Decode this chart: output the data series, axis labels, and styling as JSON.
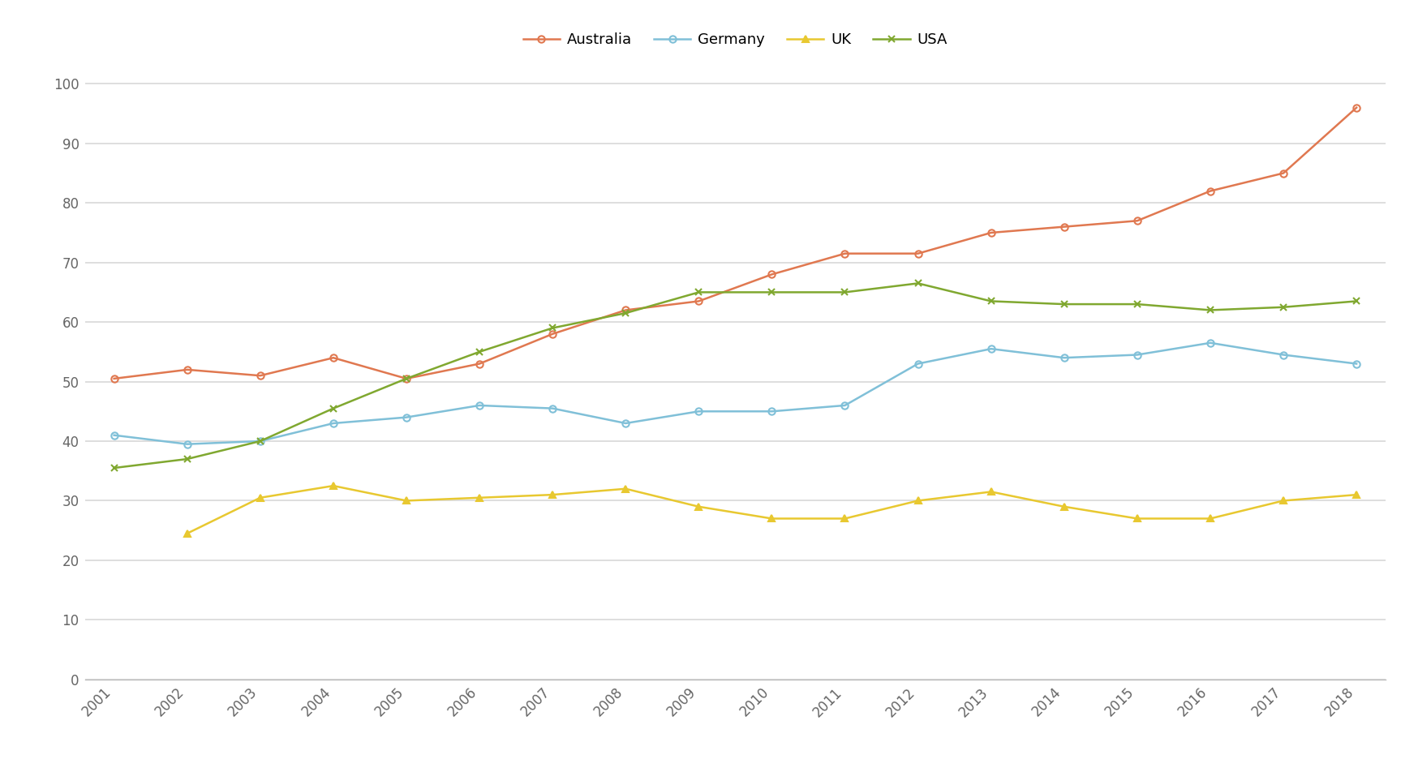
{
  "years": [
    2001,
    2002,
    2003,
    2004,
    2005,
    2006,
    2007,
    2008,
    2009,
    2010,
    2011,
    2012,
    2013,
    2014,
    2015,
    2016,
    2017,
    2018
  ],
  "australia": [
    50.5,
    52,
    51,
    54,
    50.5,
    53,
    58,
    62,
    63.5,
    68,
    71.5,
    71.5,
    75,
    76,
    77,
    82,
    85,
    96
  ],
  "germany": [
    41,
    39.5,
    40,
    43,
    44,
    46,
    45.5,
    43,
    45,
    45,
    46,
    53,
    55.5,
    54,
    54.5,
    56.5,
    54.5,
    53
  ],
  "uk": [
    null,
    24.5,
    30.5,
    32.5,
    30,
    30.5,
    31,
    32,
    29,
    27,
    27,
    30,
    31.5,
    29,
    27,
    27,
    30,
    31
  ],
  "usa": [
    35.5,
    37,
    40,
    45.5,
    50.5,
    55,
    59,
    61.5,
    65,
    65,
    65,
    66.5,
    63.5,
    63,
    63,
    62,
    62.5,
    63.5
  ],
  "colors": {
    "australia": "#E07850",
    "germany": "#80C0D8",
    "uk": "#E8C830",
    "usa": "#80A830"
  },
  "markers": {
    "australia": "o",
    "germany": "o",
    "uk": "^",
    "usa": "x"
  },
  "ylim": [
    0,
    105
  ],
  "yticks": [
    0,
    10,
    20,
    30,
    40,
    50,
    60,
    70,
    80,
    90,
    100
  ],
  "background_color": "#FFFFFF",
  "grid_color": "#D8D8D8",
  "line_width": 1.8,
  "marker_size": 6,
  "marker_edge_width": 1.5,
  "tick_fontsize": 12,
  "legend_fontsize": 13
}
